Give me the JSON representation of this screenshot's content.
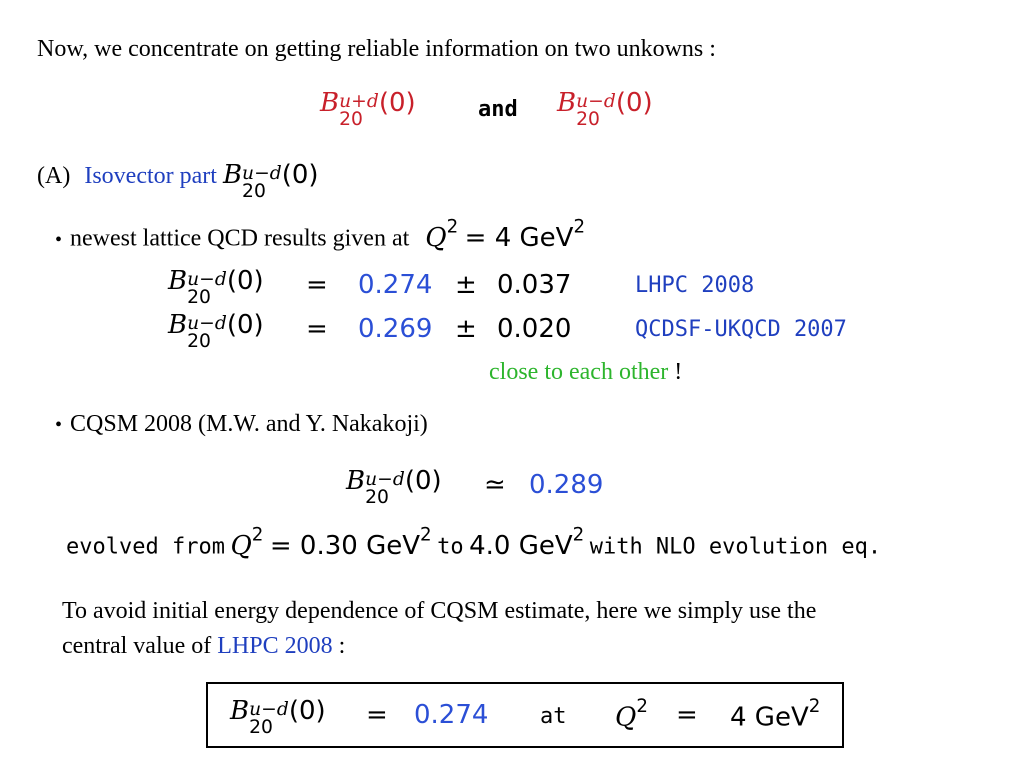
{
  "intro": {
    "text": "Now, we concentrate on getting reliable information on two unkowns :",
    "sym_plus_sup": "u+d",
    "sym_minus_sup": "u−d",
    "sym_base": "B",
    "sym_sub": "20",
    "sym_arg": "(0)",
    "and_word": "and"
  },
  "section_a": {
    "prefix": "(A)",
    "title": "Isovector part",
    "sym_sup": "u−d",
    "sym_sub": "20",
    "sym_arg": "(0)"
  },
  "bullet1": {
    "bullet": "•",
    "text": "newest lattice QCD results given at",
    "q_var": "Q",
    "q_exp": "2",
    "q_rest": "= 4 GeV",
    "q_rest_exp": "2"
  },
  "results": [
    {
      "sup": "u−d",
      "sub": "20",
      "arg": "(0)",
      "eq": "=",
      "value": "0.274",
      "pm": "±",
      "error": "0.037",
      "source": "LHPC 2008"
    },
    {
      "sup": "u−d",
      "sub": "20",
      "arg": "(0)",
      "eq": "=",
      "value": "0.269",
      "pm": "±",
      "error": "0.020",
      "source": "QCDSF-UKQCD 2007"
    }
  ],
  "close_note": {
    "text": "close to each other",
    "bang": "!"
  },
  "bullet2": {
    "bullet": "•",
    "text": "CQSM 2008 (M.W. and Y. Nakakoji)"
  },
  "cqsm": {
    "sup": "u−d",
    "sub": "20",
    "arg": "(0)",
    "approx": "≃",
    "value": "0.289"
  },
  "evolved": {
    "w1": "evolved from",
    "q_var": "Q",
    "q_exp": "2",
    "v1": "= 0.30 GeV",
    "v1_exp": "2",
    "w2": "to",
    "v2": "4.0 GeV",
    "v2_exp": "2",
    "w3": "with NLO evolution eq."
  },
  "para": {
    "line1": "To avoid initial energy dependence of CQSM estimate, here we simply use the",
    "line2_pre": "central value of",
    "line2_link": "LHPC 2008",
    "line2_post": ":"
  },
  "boxed": {
    "sup": "u−d",
    "sub": "20",
    "arg": "(0)",
    "eq": "=",
    "value": "0.274",
    "at_word": "at",
    "q_var": "Q",
    "q_exp": "2",
    "q_eq": "=",
    "q_val": "4 GeV",
    "q_val_exp": "2"
  }
}
